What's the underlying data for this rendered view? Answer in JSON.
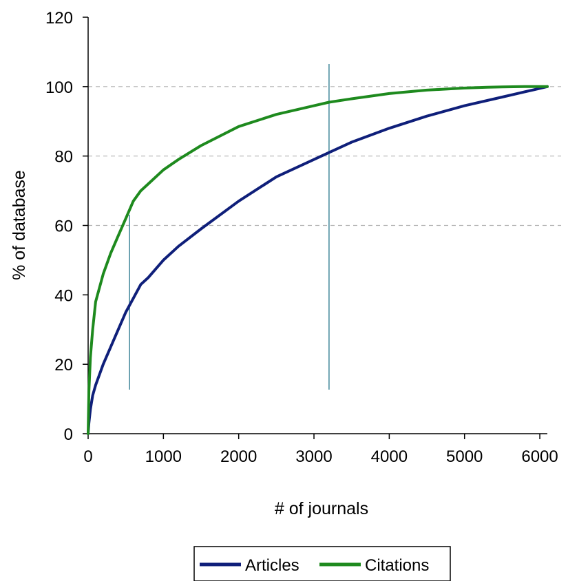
{
  "chart_data": {
    "type": "line",
    "title": "",
    "xlabel": "# of journals",
    "ylabel": "% of database",
    "xlim": [
      0,
      6100
    ],
    "ylim": [
      0,
      120
    ],
    "x_ticks": [
      0,
      1000,
      2000,
      3000,
      4000,
      5000,
      6000
    ],
    "y_ticks": [
      0,
      20,
      40,
      60,
      80,
      100,
      120
    ],
    "grid": {
      "y": [
        60,
        80,
        100
      ],
      "style": "dashed"
    },
    "legend": "bottom-center",
    "series": [
      {
        "name": "Articles",
        "color": "#0f1f7a",
        "x": [
          0,
          10,
          30,
          60,
          100,
          200,
          300,
          400,
          500,
          600,
          700,
          800,
          1000,
          1200,
          1500,
          2000,
          2500,
          3000,
          3200,
          3500,
          4000,
          4500,
          5000,
          5500,
          5700,
          5900,
          6100
        ],
        "y": [
          0,
          3,
          7,
          11,
          14,
          20,
          25,
          30,
          35,
          39,
          43,
          45,
          50,
          54,
          59,
          67,
          74,
          79,
          81,
          84,
          88,
          91.5,
          94.5,
          97,
          98,
          99,
          100
        ]
      },
      {
        "name": "Citations",
        "color": "#1e8a1e",
        "x": [
          0,
          10,
          30,
          60,
          100,
          200,
          300,
          400,
          500,
          600,
          700,
          800,
          1000,
          1200,
          1500,
          2000,
          2500,
          3000,
          3200,
          3500,
          4000,
          4500,
          5000,
          5300,
          5500,
          5800,
          6100
        ],
        "y": [
          0,
          12,
          22,
          30,
          38,
          46,
          52,
          57,
          62,
          67,
          70,
          72,
          76,
          79,
          83,
          88.5,
          92,
          94.5,
          95.5,
          96.5,
          98,
          99,
          99.6,
          99.8,
          99.9,
          100,
          100
        ]
      }
    ],
    "reference_lines_x": [
      550,
      3200
    ],
    "reference_line_color": "#4d8fa0"
  }
}
